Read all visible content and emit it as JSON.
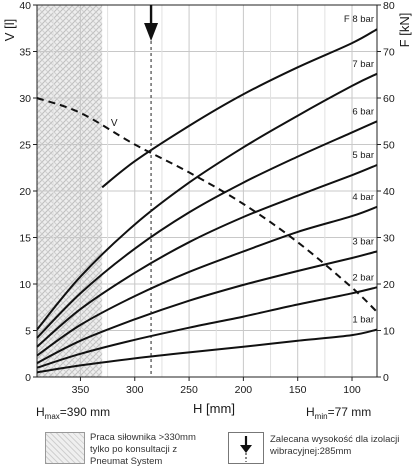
{
  "chart_data": {
    "type": "line",
    "x_label": "H [mm]",
    "y_left_label": "V [l]",
    "y_right_label": "F [kN]",
    "x_range": [
      390,
      77
    ],
    "x_ticks": [
      350,
      300,
      250,
      200,
      150,
      100
    ],
    "y_left_range": [
      0,
      40
    ],
    "y_left_ticks": [
      0,
      5,
      10,
      15,
      20,
      25,
      30,
      35,
      40
    ],
    "y_right_range": [
      0,
      80
    ],
    "y_right_ticks": [
      0,
      10,
      20,
      30,
      40,
      50,
      60,
      70,
      80
    ],
    "hmax_prefix": "H",
    "hmax_sub": "max",
    "hmax_value": "=390 mm",
    "hmin_prefix": "H",
    "hmin_sub": "min",
    "hmin_value": "=77 mm",
    "hatched_region_x": [
      390,
      330
    ],
    "recommended_height": 285,
    "force_series": [
      {
        "name": "1 bar",
        "x": [
          390,
          350,
          300,
          250,
          200,
          150,
          100,
          77
        ],
        "values": [
          1.0,
          2.5,
          4.0,
          5.3,
          6.5,
          7.8,
          9.0,
          10.2
        ]
      },
      {
        "name": "2 bar",
        "x": [
          390,
          350,
          300,
          250,
          200,
          150,
          100,
          77
        ],
        "values": [
          2.0,
          5.0,
          8.0,
          10.6,
          13.0,
          15.6,
          18.0,
          19.3
        ]
      },
      {
        "name": "3 bar",
        "x": [
          390,
          350,
          300,
          250,
          200,
          150,
          100,
          77
        ],
        "values": [
          3.0,
          7.8,
          12.4,
          16.4,
          19.8,
          22.8,
          25.6,
          27.0
        ]
      },
      {
        "name": "4 bar",
        "x": [
          390,
          350,
          300,
          250,
          200,
          150,
          100,
          77
        ],
        "values": [
          4.6,
          11.2,
          17.4,
          22.6,
          27.0,
          31.2,
          34.6,
          36.6
        ]
      },
      {
        "name": "5 bar",
        "x": [
          390,
          350,
          300,
          250,
          200,
          150,
          100,
          77
        ],
        "values": [
          6.5,
          14.6,
          22.4,
          29.0,
          34.4,
          39.0,
          43.4,
          45.6
        ]
      },
      {
        "name": "6 bar",
        "x": [
          390,
          350,
          300,
          250,
          200,
          150,
          100,
          77
        ],
        "values": [
          8.4,
          18.0,
          27.6,
          35.4,
          41.8,
          47.4,
          52.6,
          55.0
        ]
      },
      {
        "name": "7 bar",
        "x": [
          390,
          350,
          300,
          250,
          200,
          150,
          100,
          77
        ],
        "values": [
          10.2,
          21.6,
          32.8,
          41.8,
          49.4,
          56.2,
          62.6,
          65.2
        ]
      },
      {
        "name": "F 8 bar",
        "x": [
          330,
          300,
          250,
          200,
          150,
          100,
          77
        ],
        "values": [
          40.8,
          46.4,
          54.0,
          60.8,
          66.6,
          71.8,
          74.8
        ]
      }
    ],
    "volume_series": {
      "name": "V",
      "x": [
        390,
        350,
        300,
        250,
        200,
        150,
        100,
        77
      ],
      "values": [
        30.0,
        28.4,
        25.0,
        22.0,
        18.6,
        14.5,
        9.6,
        7.0
      ]
    }
  },
  "legend": {
    "hatch_text": [
      "Praca siłownika >330mm",
      "tylko po konsultacji z",
      "Pneumat System"
    ],
    "arrow_text": [
      "Zalecana wysokość dla izolacji",
      "wibracyjnej:285mm"
    ]
  },
  "colors": {
    "curve": "#111111",
    "grid": "#c8c8c8",
    "hatch_bg": "#efefef"
  }
}
